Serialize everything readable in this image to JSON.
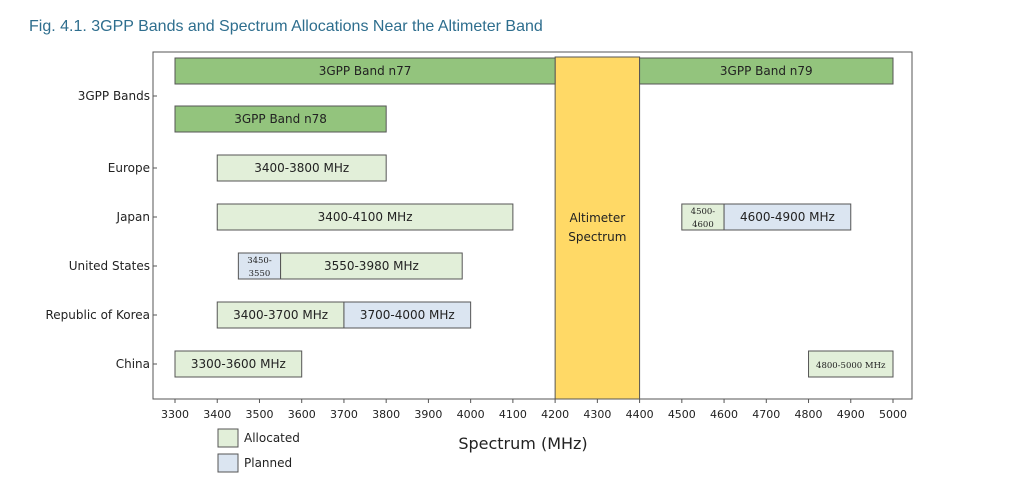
{
  "figure_title": "Fig. 4.1. 3GPP Bands and Spectrum Allocations Near the Altimeter Band",
  "chart_data": {
    "type": "bar",
    "orientation": "horizontal-range",
    "title": "Fig. 4.1. 3GPP Bands and Spectrum Allocations Near the Altimeter Band",
    "xlabel": "Spectrum (MHz)",
    "xlim": [
      3300,
      5000
    ],
    "xticks": [
      3300,
      3400,
      3500,
      3600,
      3700,
      3800,
      3900,
      4000,
      4100,
      4200,
      4300,
      4400,
      4500,
      4600,
      4700,
      4800,
      4900,
      5000
    ],
    "categories": [
      "3GPP Bands",
      "Europe",
      "Japan",
      "United States",
      "Republic of Korea",
      "China"
    ],
    "colors": {
      "band": "#93c47d",
      "allocated": "#e2efd9",
      "planned": "#dbe5f1",
      "altimeter": "#ffd966",
      "border": "#555555"
    },
    "altimeter": {
      "start": 4200,
      "end": 4400,
      "label_lines": [
        "Altimeter",
        "Spectrum"
      ]
    },
    "bars": [
      {
        "category": "3GPP Bands",
        "lane": "upper",
        "start": 3300,
        "end": 4200,
        "status": "band",
        "label": "3GPP Band n77"
      },
      {
        "category": "3GPP Bands",
        "lane": "upper",
        "start": 4400,
        "end": 5000,
        "status": "band",
        "label": "3GPP Band n79"
      },
      {
        "category": "3GPP Bands",
        "lane": "lower",
        "start": 3300,
        "end": 3800,
        "status": "band",
        "label": "3GPP Band n78"
      },
      {
        "category": "Europe",
        "start": 3400,
        "end": 3800,
        "status": "allocated",
        "label": "3400-3800 MHz"
      },
      {
        "category": "Japan",
        "start": 3400,
        "end": 4100,
        "status": "allocated",
        "label": "3400-4100 MHz"
      },
      {
        "category": "Japan",
        "start": 4500,
        "end": 4600,
        "status": "allocated",
        "label_lines": [
          "4500-",
          "4600"
        ],
        "small": true
      },
      {
        "category": "Japan",
        "start": 4600,
        "end": 4900,
        "status": "planned",
        "label": "4600-4900 MHz"
      },
      {
        "category": "United States",
        "start": 3450,
        "end": 3550,
        "status": "planned",
        "label_lines": [
          "3450-",
          "3550"
        ],
        "small": true
      },
      {
        "category": "United States",
        "start": 3550,
        "end": 3980,
        "status": "allocated",
        "label": "3550-3980 MHz"
      },
      {
        "category": "Republic of Korea",
        "start": 3400,
        "end": 3700,
        "status": "allocated",
        "label": "3400-3700 MHz"
      },
      {
        "category": "Republic of Korea",
        "start": 3700,
        "end": 4000,
        "status": "planned",
        "label": "3700-4000 MHz"
      },
      {
        "category": "China",
        "start": 3300,
        "end": 3600,
        "status": "allocated",
        "label": "3300-3600 MHz"
      },
      {
        "category": "China",
        "start": 4800,
        "end": 5000,
        "status": "allocated",
        "label": "4800-5000 MHz",
        "small": true
      }
    ],
    "legend": [
      {
        "status": "allocated",
        "label": "Allocated"
      },
      {
        "status": "planned",
        "label": "Planned"
      }
    ],
    "legend_position": "bottom-left"
  }
}
